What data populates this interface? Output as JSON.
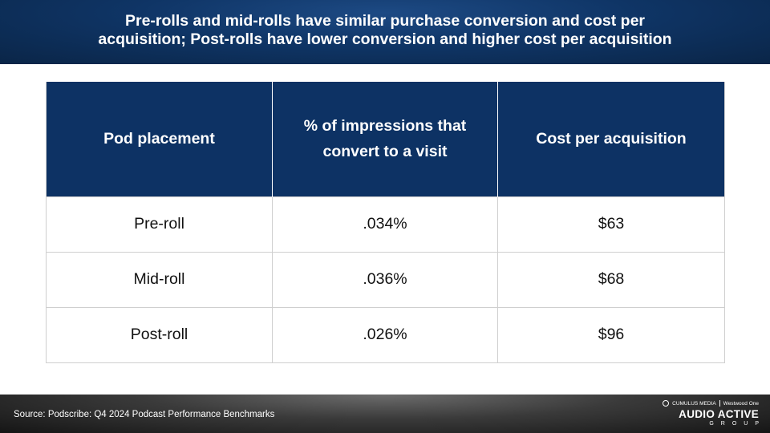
{
  "title": "Pre-rolls and mid-rolls have similar purchase conversion and cost per acquisition; Post-rolls have lower conversion and higher cost per acquisition",
  "table": {
    "headers": [
      "Pod placement",
      "% of impressions that convert to a visit",
      "Cost per acquisition"
    ],
    "rows": [
      [
        "Pre-roll",
        ".034%",
        "$63"
      ],
      [
        "Mid-roll",
        ".036%",
        "$68"
      ],
      [
        "Post-roll",
        ".026%",
        "$96"
      ]
    ]
  },
  "footer": {
    "source": "Source: Podscribe: Q4 2024 Podcast Performance Benchmarks",
    "logo": {
      "top_left": "CUMULUS MEDIA",
      "top_right": "Westwood One",
      "main": "AUDIO ACTIVE",
      "sub": "GROUP"
    }
  },
  "colors": {
    "header_bg": "#0f3566",
    "table_header_bg": "#0d3264",
    "footer_bg": "#3a3a3a"
  }
}
